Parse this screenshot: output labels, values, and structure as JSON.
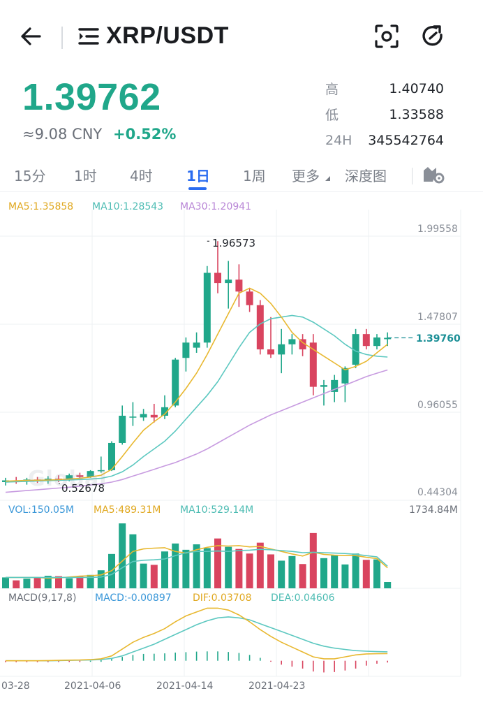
{
  "header": {
    "pair": "XRP/USDT"
  },
  "price": {
    "last": "1.39762",
    "cny": "≈9.08 CNY",
    "change": "+0.52%"
  },
  "stats": [
    {
      "label": "高",
      "value": "1.40740"
    },
    {
      "label": "低",
      "value": "1.33588"
    },
    {
      "label": "24H",
      "value": "345542764"
    }
  ],
  "tabs": [
    "15分",
    "1时",
    "4时",
    "1日",
    "1周",
    "更多",
    "深度图"
  ],
  "active_tab": "1日",
  "ma": {
    "ma5": "MA5:1.35858",
    "ma10": "MA10:1.28543",
    "ma30": "MA30:1.20941"
  },
  "vol": {
    "vol": "VOL:150.05M",
    "ma5": "MA5:489.31M",
    "ma10": "MA10:529.14M",
    "max": "1734.84M"
  },
  "macd": {
    "title": "MACD(9,17,8)",
    "macd": "MACD:-0.00897",
    "dif": "DIF:0.03708",
    "dea": "DEA:0.04606"
  },
  "watermark": "Global",
  "colors": {
    "up": "#20a78a",
    "down": "#d9445f",
    "ma5": "#e8b830",
    "ma10": "#5cc8c0",
    "ma30": "#c79be0",
    "accent": "#2a6cf0"
  },
  "chart_data": {
    "type": "candlestick",
    "y_ticks": [
      "1.99558",
      "1.47807",
      "0.96055",
      "0.44304"
    ],
    "ylim": [
      0.44304,
      1.99558
    ],
    "x_ticks": [
      "03-28",
      "2021-04-06",
      "2021-04-14",
      "2021-04-23"
    ],
    "high_marker": "1.96573",
    "low_marker": "0.52678",
    "last_marker": "1.39760",
    "candles": [
      {
        "o": 0.55,
        "h": 0.575,
        "l": 0.53,
        "c": 0.56
      },
      {
        "o": 0.56,
        "h": 0.58,
        "l": 0.54,
        "c": 0.555
      },
      {
        "o": 0.555,
        "h": 0.575,
        "l": 0.535,
        "c": 0.565
      },
      {
        "o": 0.565,
        "h": 0.58,
        "l": 0.545,
        "c": 0.56
      },
      {
        "o": 0.56,
        "h": 0.585,
        "l": 0.54,
        "c": 0.57
      },
      {
        "o": 0.57,
        "h": 0.59,
        "l": 0.55,
        "c": 0.565
      },
      {
        "o": 0.565,
        "h": 0.6,
        "l": 0.555,
        "c": 0.59
      },
      {
        "o": 0.59,
        "h": 0.605,
        "l": 0.57,
        "c": 0.58
      },
      {
        "o": 0.58,
        "h": 0.62,
        "l": 0.575,
        "c": 0.615
      },
      {
        "o": 0.615,
        "h": 0.7,
        "l": 0.605,
        "c": 0.62
      },
      {
        "o": 0.62,
        "h": 0.79,
        "l": 0.615,
        "c": 0.78
      },
      {
        "o": 0.78,
        "h": 1.0,
        "l": 0.77,
        "c": 0.94
      },
      {
        "o": 0.93,
        "h": 1.02,
        "l": 0.88,
        "c": 0.935
      },
      {
        "o": 0.93,
        "h": 0.98,
        "l": 0.91,
        "c": 0.95
      },
      {
        "o": 0.945,
        "h": 1.01,
        "l": 0.9,
        "c": 0.93
      },
      {
        "o": 0.94,
        "h": 1.06,
        "l": 0.92,
        "c": 0.99
      },
      {
        "o": 1.0,
        "h": 1.28,
        "l": 0.99,
        "c": 1.27
      },
      {
        "o": 1.28,
        "h": 1.4,
        "l": 1.2,
        "c": 1.37
      },
      {
        "o": 1.34,
        "h": 1.43,
        "l": 1.31,
        "c": 1.37
      },
      {
        "o": 1.37,
        "h": 1.82,
        "l": 1.34,
        "c": 1.78
      },
      {
        "o": 1.78,
        "h": 1.966,
        "l": 1.66,
        "c": 1.72
      },
      {
        "o": 1.72,
        "h": 1.85,
        "l": 1.57,
        "c": 1.74
      },
      {
        "o": 1.74,
        "h": 1.83,
        "l": 1.58,
        "c": 1.67
      },
      {
        "o": 1.67,
        "h": 1.69,
        "l": 1.55,
        "c": 1.59
      },
      {
        "o": 1.59,
        "h": 1.62,
        "l": 1.3,
        "c": 1.33
      },
      {
        "o": 1.33,
        "h": 1.52,
        "l": 1.28,
        "c": 1.3
      },
      {
        "o": 1.3,
        "h": 1.45,
        "l": 1.19,
        "c": 1.36
      },
      {
        "o": 1.36,
        "h": 1.42,
        "l": 1.3,
        "c": 1.39
      },
      {
        "o": 1.39,
        "h": 1.42,
        "l": 1.29,
        "c": 1.33
      },
      {
        "o": 1.37,
        "h": 1.42,
        "l": 1.06,
        "c": 1.11
      },
      {
        "o": 1.11,
        "h": 1.15,
        "l": 1.0,
        "c": 1.12
      },
      {
        "o": 1.08,
        "h": 1.18,
        "l": 1.02,
        "c": 1.15
      },
      {
        "o": 1.13,
        "h": 1.23,
        "l": 1.02,
        "c": 1.22
      },
      {
        "o": 1.24,
        "h": 1.45,
        "l": 1.22,
        "c": 1.42
      },
      {
        "o": 1.42,
        "h": 1.45,
        "l": 1.33,
        "c": 1.35
      },
      {
        "o": 1.35,
        "h": 1.42,
        "l": 1.33,
        "c": 1.4
      },
      {
        "o": 1.39,
        "h": 1.43,
        "l": 1.35,
        "c": 1.398
      }
    ],
    "ma5": [
      0.555,
      0.558,
      0.56,
      0.561,
      0.562,
      0.564,
      0.568,
      0.572,
      0.58,
      0.59,
      0.625,
      0.7,
      0.78,
      0.855,
      0.905,
      0.95,
      1.02,
      1.1,
      1.19,
      1.3,
      1.42,
      1.54,
      1.66,
      1.69,
      1.66,
      1.6,
      1.52,
      1.43,
      1.37,
      1.33,
      1.29,
      1.25,
      1.21,
      1.23,
      1.26,
      1.31,
      1.36
    ],
    "ma10": [
      0.55,
      0.552,
      0.554,
      0.556,
      0.558,
      0.56,
      0.562,
      0.565,
      0.568,
      0.572,
      0.585,
      0.61,
      0.65,
      0.7,
      0.745,
      0.79,
      0.85,
      0.92,
      0.99,
      1.06,
      1.14,
      1.24,
      1.34,
      1.43,
      1.48,
      1.51,
      1.52,
      1.53,
      1.52,
      1.49,
      1.45,
      1.41,
      1.36,
      1.32,
      1.3,
      1.29,
      1.285
    ],
    "ma30": [
      0.49,
      0.495,
      0.5,
      0.505,
      0.51,
      0.515,
      0.52,
      0.526,
      0.533,
      0.54,
      0.55,
      0.565,
      0.585,
      0.605,
      0.625,
      0.645,
      0.665,
      0.69,
      0.715,
      0.745,
      0.78,
      0.815,
      0.85,
      0.885,
      0.915,
      0.945,
      0.97,
      0.995,
      1.02,
      1.045,
      1.07,
      1.095,
      1.12,
      1.145,
      1.17,
      1.19,
      1.209
    ],
    "volume": {
      "ylim": [
        0,
        1734.84
      ],
      "values": [
        260,
        190,
        230,
        250,
        300,
        290,
        240,
        290,
        320,
        430,
        820,
        1550,
        1290,
        590,
        560,
        880,
        1070,
        920,
        1050,
        960,
        1190,
        990,
        940,
        830,
        1090,
        810,
        660,
        770,
        580,
        1320,
        720,
        790,
        570,
        830,
        680,
        690,
        150
      ],
      "ma5": [
        0,
        0,
        0,
        0,
        240,
        250,
        270,
        290,
        300,
        320,
        420,
        650,
        880,
        940,
        960,
        970,
        880,
        840,
        920,
        980,
        1020,
        1010,
        1020,
        990,
        1000,
        940,
        880,
        820,
        770,
        860,
        810,
        790,
        780,
        780,
        740,
        710,
        489
      ],
      "ma10": [
        0,
        0,
        0,
        0,
        0,
        0,
        0,
        0,
        0,
        270,
        330,
        490,
        640,
        670,
        680,
        700,
        780,
        850,
        880,
        880,
        890,
        880,
        900,
        910,
        930,
        920,
        900,
        880,
        850,
        860,
        850,
        840,
        830,
        810,
        780,
        750,
        529
      ]
    },
    "macd": {
      "hist": [
        -0.002,
        -0.002,
        -0.002,
        -0.002,
        -0.002,
        -0.001,
        -0.001,
        -0.001,
        0.0,
        0.003,
        0.01,
        0.02,
        0.03,
        0.035,
        0.036,
        0.038,
        0.042,
        0.044,
        0.047,
        0.048,
        0.048,
        0.045,
        0.04,
        0.03,
        0.015,
        -0.005,
        -0.02,
        -0.03,
        -0.04,
        -0.055,
        -0.06,
        -0.058,
        -0.05,
        -0.04,
        -0.025,
        -0.015,
        -0.009
      ],
      "dif": [
        0.0,
        0.0,
        0.0,
        0.0,
        0.001,
        0.002,
        0.003,
        0.004,
        0.006,
        0.01,
        0.025,
        0.06,
        0.095,
        0.12,
        0.14,
        0.165,
        0.2,
        0.23,
        0.25,
        0.27,
        0.27,
        0.26,
        0.235,
        0.2,
        0.16,
        0.125,
        0.095,
        0.07,
        0.045,
        0.02,
        0.01,
        0.01,
        0.02,
        0.03,
        0.035,
        0.036,
        0.037
      ],
      "dea": [
        0.0,
        0.0,
        0.0,
        0.0,
        0.0,
        0.001,
        0.002,
        0.003,
        0.004,
        0.006,
        0.012,
        0.025,
        0.045,
        0.065,
        0.085,
        0.11,
        0.135,
        0.16,
        0.185,
        0.205,
        0.22,
        0.225,
        0.22,
        0.21,
        0.19,
        0.17,
        0.15,
        0.13,
        0.11,
        0.09,
        0.075,
        0.065,
        0.058,
        0.052,
        0.049,
        0.047,
        0.046
      ],
      "ylim": [
        -0.08,
        0.3
      ]
    }
  }
}
